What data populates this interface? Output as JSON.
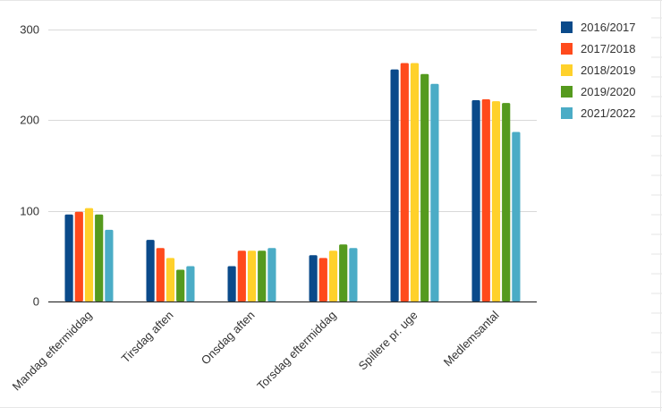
{
  "chart_data": {
    "type": "bar",
    "title": "",
    "xlabel": "",
    "ylabel": "",
    "ylim": [
      0,
      300
    ],
    "yticks": [
      0,
      100,
      200,
      300
    ],
    "grid": true,
    "legend_position": "right",
    "categories": [
      "Mandag eftermiddag",
      "Tirsdag aften",
      "Onsdag aften",
      "Torsdag eftermiddag",
      "Spillere pr. uge",
      "Medlemsantal"
    ],
    "series": [
      {
        "name": "2016/2017",
        "color": "#0a4a8a",
        "values": [
          96,
          68,
          39,
          51,
          256,
          222
        ]
      },
      {
        "name": "2017/2018",
        "color": "#ff4a1c",
        "values": [
          99,
          59,
          56,
          48,
          263,
          223
        ]
      },
      {
        "name": "2018/2019",
        "color": "#ffd12b",
        "values": [
          103,
          48,
          56,
          56,
          263,
          221
        ]
      },
      {
        "name": "2019/2020",
        "color": "#559a1e",
        "values": [
          96,
          35,
          56,
          63,
          251,
          219
        ]
      },
      {
        "name": "2021/2022",
        "color": "#4bacc6",
        "values": [
          79,
          39,
          59,
          59,
          240,
          187
        ]
      }
    ]
  }
}
